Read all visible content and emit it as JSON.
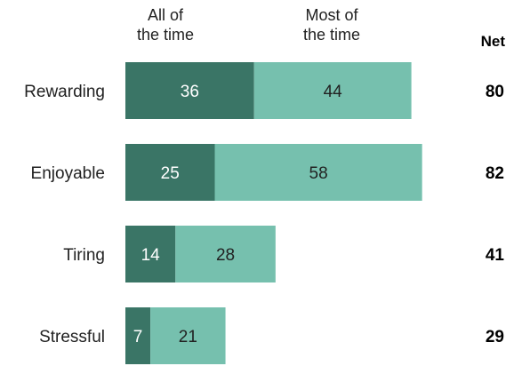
{
  "chart_data": {
    "type": "bar",
    "orientation": "horizontal",
    "stacked": true,
    "categories": [
      "Rewarding",
      "Enjoyable",
      "Tiring",
      "Stressful"
    ],
    "series": [
      {
        "name": "All of the time",
        "values": [
          36,
          25,
          14,
          7
        ],
        "color": "#3a7566"
      },
      {
        "name": "Most of the time",
        "values": [
          44,
          58,
          28,
          21
        ],
        "color": "#76c0ae"
      }
    ],
    "net_label": "Net",
    "net_values": [
      80,
      82,
      41,
      29
    ],
    "legend": {
      "placement": "top",
      "entries": [
        "All of the time",
        "Most of the time"
      ]
    },
    "grid": false,
    "xlim": [
      0,
      100
    ]
  }
}
